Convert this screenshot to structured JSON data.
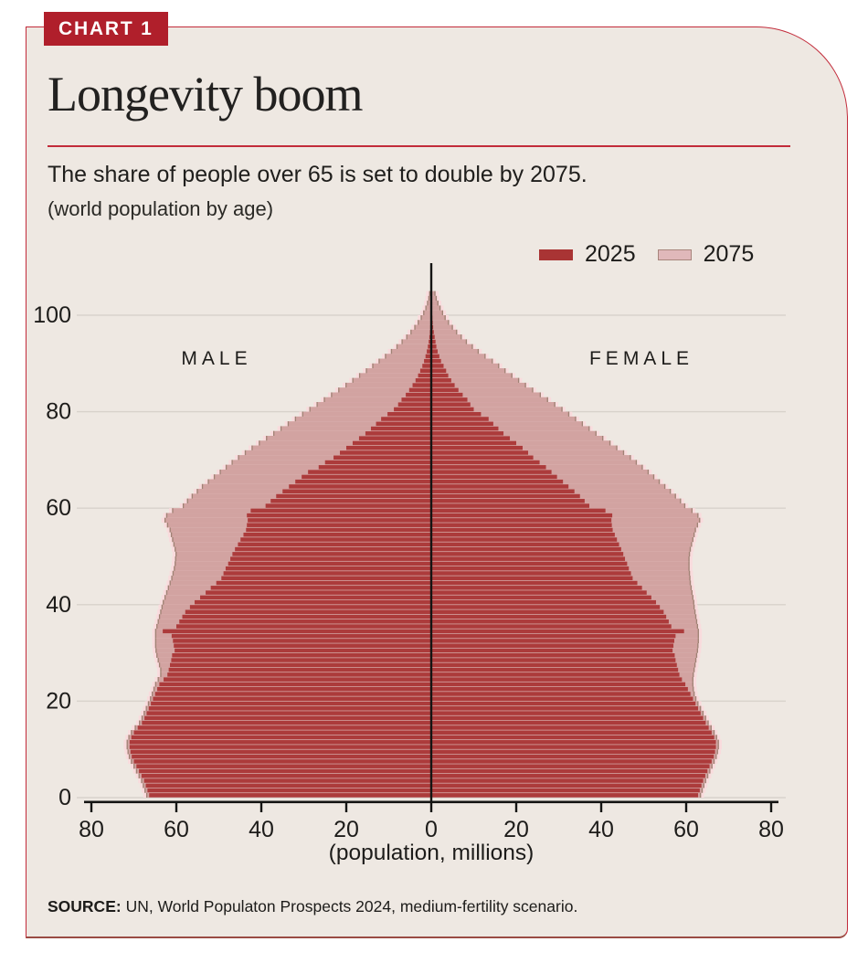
{
  "badge": "CHART 1",
  "title": "Longevity boom",
  "subtitle": "The share of people over 65 is set to double by 2075.",
  "caption": "(world population by age)",
  "legend": {
    "items": [
      {
        "label": "2025",
        "color": "#A93434"
      },
      {
        "label": "2075",
        "color": "#E0B8BA"
      }
    ]
  },
  "labels": {
    "male": "MALE",
    "female": "FEMALE",
    "axis_title": "(population, millions)"
  },
  "source": {
    "prefix": "SOURCE:",
    "text": " UN, World Populaton Prospects 2024, medium-fertility scenario."
  },
  "colors": {
    "panel_bg": "#EEE8E2",
    "accent_red": "#C22B3A",
    "badge_red": "#B01F2B",
    "bar_2025": "#AC3B3B",
    "bar_2075_fill": "#D2A3A1",
    "bar_2075_edge": "#9F8274",
    "bar_2075_halo": "#F9DBDD",
    "gridline": "#D8D2CB",
    "axis_black": "#141413",
    "text": "#1D1C1A"
  },
  "chart_data": {
    "type": "bar",
    "variant": "population-pyramid",
    "title": "Longevity boom",
    "subtitle": "The share of people over 65 is set to double by 2075.",
    "units": "(population, millions)",
    "age_ticks": [
      0,
      20,
      40,
      60,
      80,
      100
    ],
    "x_tick_values": [
      -80,
      -60,
      -40,
      -20,
      0,
      20,
      40,
      60,
      80
    ],
    "xlim": [
      -80,
      80
    ],
    "age_min": 0,
    "age_max": 104,
    "grid": true,
    "legend_position": "top-right",
    "series": [
      {
        "name": "2025",
        "male": [
          66.4,
          66.8,
          67.2,
          67.6,
          68.2,
          68.8,
          69.4,
          70.0,
          70.5,
          70.8,
          71.0,
          71.0,
          70.6,
          70.0,
          69.1,
          68.1,
          67.5,
          67.0,
          66.5,
          66.0,
          65.5,
          65.0,
          64.5,
          64.0,
          63.0,
          62.1,
          61.8,
          61.5,
          61.2,
          61.0,
          60.4,
          60.6,
          60.8,
          61.1,
          63.2,
          60.0,
          59.3,
          58.6,
          57.9,
          56.8,
          55.7,
          54.4,
          53.1,
          51.9,
          50.6,
          49.4,
          48.9,
          48.4,
          47.8,
          47.3,
          46.8,
          46.2,
          45.5,
          44.9,
          44.2,
          43.6,
          43.4,
          43.2,
          43.4,
          42.5,
          39.0,
          37.8,
          36.5,
          35.0,
          33.5,
          32.0,
          30.5,
          29.0,
          26.5,
          25.0,
          23.0,
          21.5,
          20.0,
          18.5,
          17.0,
          15.5,
          14.2,
          13.0,
          11.8,
          10.3,
          8.8,
          7.8,
          7.0,
          6.0,
          5.2,
          4.4,
          3.7,
          3.1,
          2.6,
          2.1,
          1.7,
          1.35,
          1.05,
          0.8,
          0.6,
          0.45,
          0.33,
          0.24,
          0.17,
          0.12,
          0.08,
          0.05,
          0.03,
          0.02,
          0.01
        ],
        "female": [
          62.8,
          63.2,
          63.6,
          64.0,
          64.5,
          65.0,
          65.5,
          66.0,
          66.5,
          66.8,
          67.0,
          67.0,
          66.6,
          66.0,
          65.3,
          64.6,
          64.0,
          63.4,
          62.8,
          62.2,
          61.6,
          61.0,
          60.4,
          59.8,
          59.0,
          58.4,
          58.1,
          57.8,
          57.5,
          57.3,
          56.8,
          57.0,
          57.2,
          57.5,
          59.5,
          56.5,
          55.9,
          55.3,
          54.7,
          53.8,
          52.9,
          51.8,
          50.7,
          49.6,
          48.5,
          47.4,
          47.0,
          46.5,
          46.1,
          45.6,
          45.2,
          44.7,
          44.2,
          43.7,
          43.2,
          42.7,
          42.5,
          42.4,
          42.6,
          41.0,
          37.2,
          36.1,
          35.0,
          33.7,
          32.3,
          31.0,
          29.6,
          28.3,
          27.0,
          25.5,
          24.0,
          22.8,
          21.5,
          20.0,
          18.5,
          17.0,
          15.8,
          14.6,
          13.5,
          11.7,
          10.0,
          9.2,
          8.5,
          7.4,
          6.4,
          5.5,
          4.7,
          4.0,
          3.5,
          2.9,
          2.3,
          1.9,
          1.5,
          1.2,
          1.0,
          0.8,
          0.6,
          0.45,
          0.35,
          0.27,
          0.2,
          0.15,
          0.1,
          0.07,
          0.05
        ]
      },
      {
        "name": "2075",
        "male": [
          67.1,
          67.5,
          67.9,
          68.3,
          68.9,
          69.5,
          70.1,
          70.7,
          71.2,
          71.5,
          71.7,
          71.7,
          71.3,
          70.7,
          69.8,
          68.8,
          68.2,
          67.7,
          67.2,
          66.7,
          66.2,
          65.8,
          65.4,
          65.0,
          64.4,
          63.8,
          63.8,
          64.1,
          64.4,
          64.7,
          64.9,
          65.0,
          65.0,
          65.0,
          65.0,
          64.7,
          64.4,
          64.1,
          63.8,
          63.5,
          63.2,
          62.8,
          62.4,
          62.0,
          61.6,
          61.2,
          60.9,
          60.6,
          60.4,
          60.3,
          60.2,
          60.4,
          60.7,
          61.0,
          61.3,
          61.6,
          62.2,
          62.8,
          62.4,
          61.0,
          58.5,
          57.5,
          56.4,
          55.2,
          54.0,
          52.6,
          51.2,
          49.8,
          48.4,
          47.0,
          45.5,
          43.9,
          42.3,
          40.6,
          38.9,
          37.2,
          35.5,
          33.8,
          32.1,
          30.4,
          28.7,
          27.0,
          25.3,
          23.6,
          21.9,
          20.2,
          18.6,
          17.0,
          15.4,
          13.9,
          12.4,
          10.9,
          9.5,
          8.2,
          7.0,
          5.9,
          4.9,
          4.0,
          3.2,
          2.5,
          1.9,
          1.4,
          1.0,
          0.7,
          0.5
        ],
        "female": [
          63.5,
          63.9,
          64.3,
          64.7,
          65.2,
          65.7,
          66.2,
          66.7,
          67.2,
          67.5,
          67.7,
          67.7,
          67.3,
          66.7,
          66.0,
          65.3,
          64.7,
          64.1,
          63.5,
          62.9,
          62.4,
          62.0,
          61.8,
          61.7,
          61.7,
          61.8,
          62.0,
          62.2,
          62.4,
          62.6,
          62.8,
          62.9,
          63.0,
          63.0,
          63.0,
          62.8,
          62.6,
          62.4,
          62.2,
          62.0,
          61.9,
          61.7,
          61.5,
          61.3,
          61.1,
          61.0,
          60.9,
          60.8,
          60.8,
          60.8,
          60.9,
          61.1,
          61.4,
          61.7,
          62.0,
          62.3,
          62.8,
          63.3,
          62.9,
          61.5,
          59.8,
          58.8,
          57.6,
          56.4,
          55.1,
          53.8,
          52.5,
          51.2,
          49.8,
          48.4,
          47.0,
          45.4,
          43.8,
          42.2,
          40.5,
          38.9,
          37.3,
          35.7,
          34.1,
          32.5,
          30.9,
          29.2,
          27.5,
          25.8,
          24.0,
          22.3,
          20.7,
          19.1,
          17.5,
          16.0,
          14.5,
          12.8,
          11.2,
          9.8,
          8.4,
          7.2,
          6.1,
          5.1,
          4.2,
          3.4,
          2.8,
          2.2,
          1.7,
          1.3,
          1.0
        ]
      }
    ]
  }
}
